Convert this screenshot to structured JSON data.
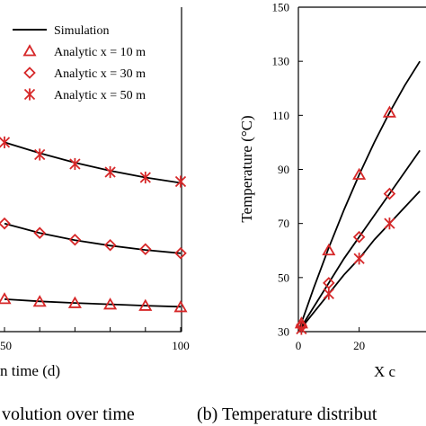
{
  "chart_data": [
    {
      "type": "line",
      "panel": "left",
      "caption": "volution over time",
      "xlabel": "n time (d)",
      "ylabel": "",
      "x_ticks": [
        "50",
        "60",
        "70",
        "80",
        "90",
        "100"
      ],
      "x_tick_labels_shown": [
        "50",
        "100"
      ],
      "xlim": [
        50,
        100
      ],
      "legend": {
        "placement": "top-right",
        "entries": [
          {
            "key": "simulation",
            "label": "Simulation",
            "marker": "line"
          },
          {
            "key": "x10",
            "label": "Analytic x = 10 m",
            "marker": "triangle"
          },
          {
            "key": "x30",
            "label": "Analytic x = 30 m",
            "marker": "diamond"
          },
          {
            "key": "x50",
            "label": "Analytic x = 50 m",
            "marker": "asterisk"
          }
        ]
      },
      "series": [
        {
          "key": "x50",
          "marker": "asterisk",
          "x": [
            50,
            60,
            70,
            80,
            90,
            100
          ],
          "y": [
            100.0,
            95.5,
            92.0,
            89.0,
            87.0,
            85.5
          ]
        },
        {
          "key": "x30",
          "marker": "diamond",
          "x": [
            50,
            60,
            70,
            80,
            90,
            100
          ],
          "y": [
            70.0,
            66.5,
            64.0,
            62.0,
            60.5,
            59.0
          ]
        },
        {
          "key": "x10",
          "marker": "triangle",
          "x": [
            50,
            60,
            70,
            80,
            90,
            100
          ],
          "y": [
            42.0,
            41.0,
            40.5,
            40.0,
            39.5,
            39.0
          ]
        }
      ],
      "simulation_curves": [
        {
          "x": [
            50,
            60,
            70,
            80,
            90,
            100
          ],
          "y": [
            100.0,
            96.0,
            92.5,
            89.5,
            87.0,
            85.0
          ]
        },
        {
          "x": [
            50,
            60,
            70,
            80,
            90,
            100
          ],
          "y": [
            70.0,
            66.5,
            63.8,
            61.8,
            60.2,
            59.0
          ]
        },
        {
          "x": [
            50,
            60,
            70,
            80,
            90,
            100
          ],
          "y": [
            42.0,
            41.2,
            40.6,
            40.1,
            39.6,
            39.2
          ]
        }
      ],
      "ylim": [
        30,
        150
      ]
    },
    {
      "type": "line",
      "panel": "right",
      "caption": "(b) Temperature distribut",
      "xlabel": "X c",
      "ylabel": "Temperature (°C)",
      "y_ticks": [
        "30",
        "50",
        "70",
        "90",
        "110",
        "130",
        "150"
      ],
      "x_ticks": [
        "0",
        "20"
      ],
      "ylim": [
        30,
        150
      ],
      "xlim": [
        0,
        42
      ],
      "series": [
        {
          "marker": "triangle",
          "x": [
            1,
            10,
            20,
            30
          ],
          "y": [
            33,
            60,
            88,
            111
          ]
        },
        {
          "marker": "diamond",
          "x": [
            1,
            10,
            20,
            30
          ],
          "y": [
            32,
            48,
            65,
            81
          ]
        },
        {
          "marker": "asterisk",
          "x": [
            1,
            10,
            20,
            30
          ],
          "y": [
            31,
            44,
            57,
            70
          ]
        }
      ],
      "simulation_curves": [
        {
          "x": [
            0,
            5,
            10,
            15,
            20,
            25,
            30,
            35,
            40
          ],
          "y": [
            30,
            46,
            61,
            75,
            88,
            100,
            111,
            121,
            130
          ]
        },
        {
          "x": [
            0,
            5,
            10,
            15,
            20,
            25,
            30,
            35,
            40
          ],
          "y": [
            30,
            39,
            48,
            57,
            65,
            73,
            81,
            89,
            97
          ]
        },
        {
          "x": [
            0,
            5,
            10,
            15,
            20,
            25,
            30,
            35,
            40
          ],
          "y": [
            30,
            37,
            44,
            51,
            57,
            64,
            70,
            76,
            82
          ]
        }
      ]
    }
  ],
  "colors": {
    "marker": "#d62728",
    "line": "#000000"
  }
}
